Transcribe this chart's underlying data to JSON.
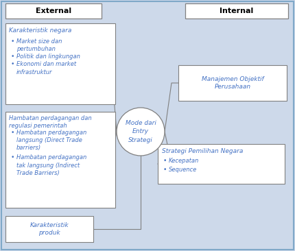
{
  "background_color": "#cdd9ea",
  "fig_bg": "#cdd9ea",
  "box_face": "#ffffff",
  "box_edge": "#808080",
  "text_color": "#4472c4",
  "header_text_color": "#000000",
  "circle_color": "#ffffff",
  "circle_edge": "#808080",
  "line_color": "#808080",
  "outer_edge": "#7fa8c8",
  "external_label": "External",
  "internal_label": "Internal",
  "center_text": "Mode dari\nEntry\nStrategi",
  "box1_title": "Karakteristik negara",
  "box1_bullets": [
    "Market size dan\npertumbuhan",
    "Politik dan lingkungan",
    "Ekonomi dan market\ninfrastruktur"
  ],
  "box2_title": "Hambatan perdagangan dan\nregulasi pemerintah",
  "box2_bullets": [
    "Hambatan perdagangan\nlangsung (Direct Trade\nbarriers)",
    "Hambatan perdagangan\ntak langsung (Indirect\nTrade Barriers)"
  ],
  "box3_title": "Karakteristik\nproduk",
  "box_right1_title": "Manajemen Objektif\nPerusahaan",
  "box_right2_title": "Strategi Pemilihan Negara",
  "box_right2_bullets": [
    "Kecepatan",
    "Sequence"
  ]
}
